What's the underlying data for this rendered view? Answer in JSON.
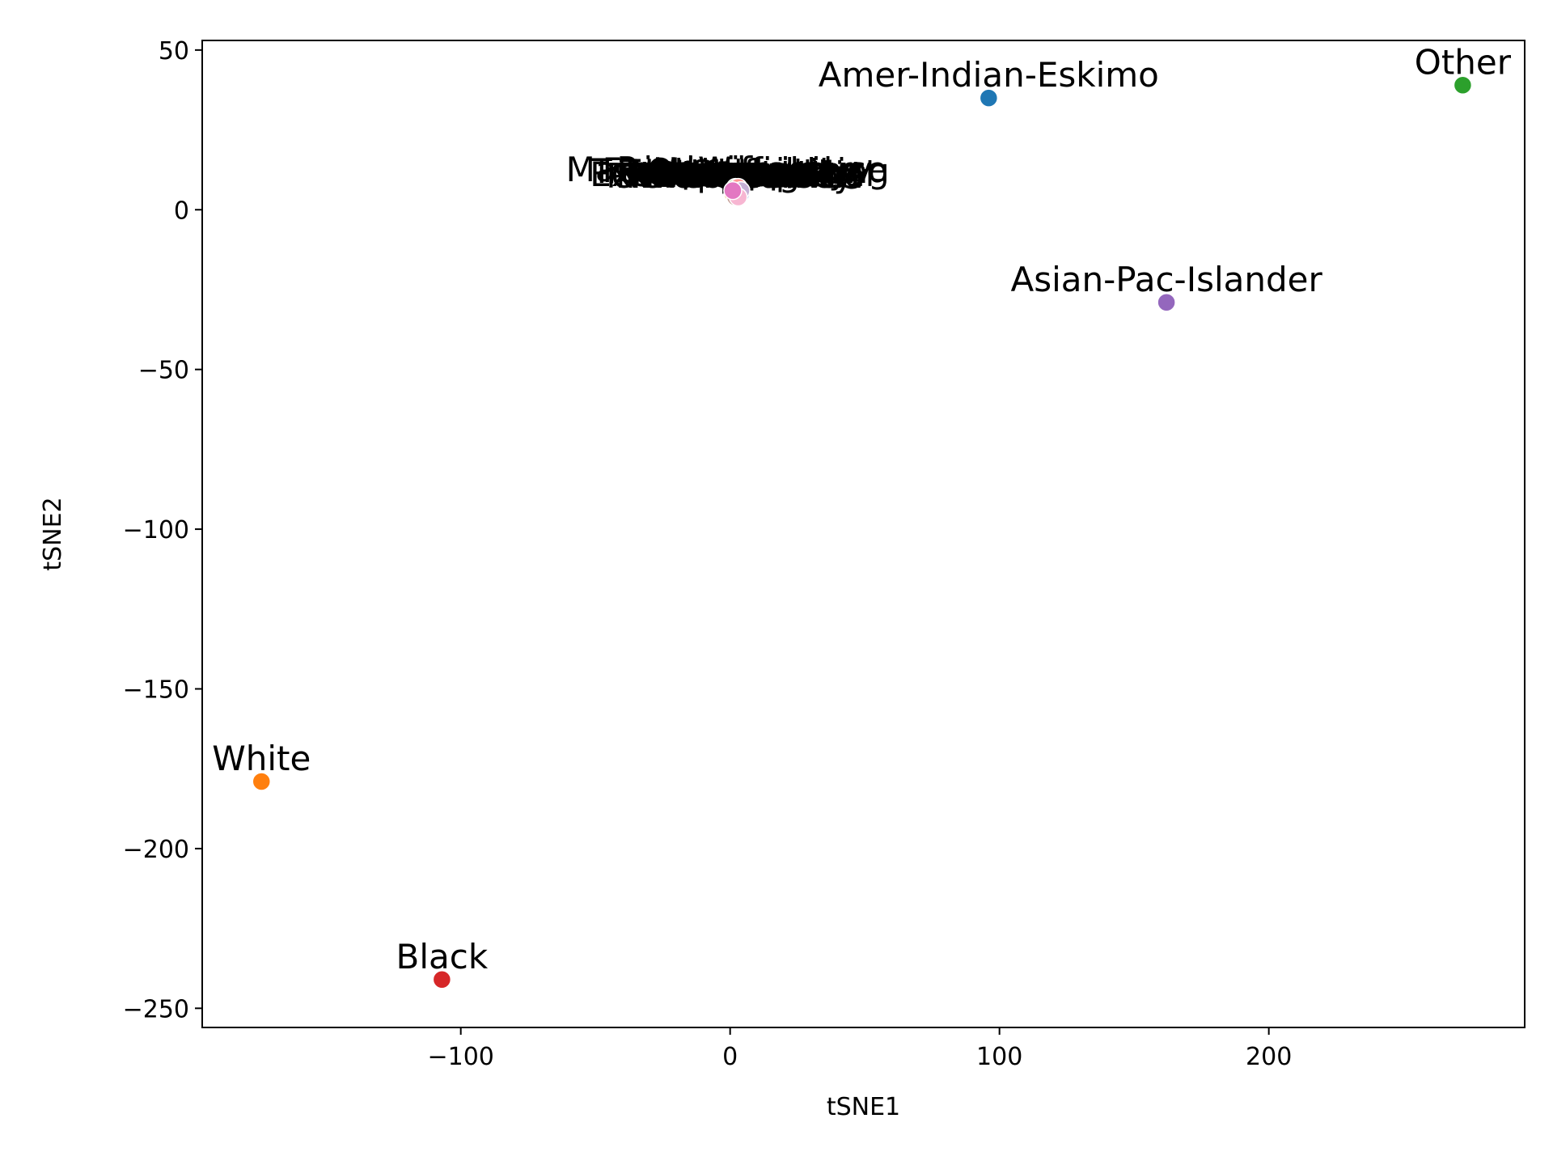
{
  "chart_data": {
    "type": "scatter",
    "title": "",
    "xlabel": "tSNE1",
    "ylabel": "tSNE2",
    "xlim": [
      -196,
      295
    ],
    "ylim": [
      -256,
      53
    ],
    "xticks": [
      -100,
      0,
      100,
      200
    ],
    "yticks": [
      50,
      0,
      -50,
      -100,
      -150,
      -200,
      -250
    ],
    "xtick_labels": [
      "−100",
      "0",
      "100",
      "200"
    ],
    "ytick_labels": [
      "50",
      "0",
      "−50",
      "−100",
      "−150",
      "−200",
      "−250"
    ],
    "grid": false,
    "legend": "none",
    "points": [
      {
        "label": "Amer-Indian-Eskimo",
        "x": 96,
        "y": 35,
        "color": "#1f77b4"
      },
      {
        "label": "Other",
        "x": 272,
        "y": 39,
        "color": "#2ca02c"
      },
      {
        "label": "Asian-Pac-Islander",
        "x": 162,
        "y": -29,
        "color": "#9467bd"
      },
      {
        "label": "White",
        "x": 174,
        "y": -179,
        "color": "#ff7f0e",
        "x_sign": -1
      },
      {
        "label": "Black",
        "x": -107,
        "y": -241,
        "color": "#d62728"
      },
      {
        "label": "",
        "x": 1,
        "y": 6,
        "color": "#e377c2"
      },
      {
        "label": "",
        "x": 2,
        "y": 6,
        "color": "#8c564b"
      },
      {
        "label": "",
        "x": 3,
        "y": 5,
        "color": "#7f7f7f"
      },
      {
        "label": "",
        "x": 2,
        "y": 5,
        "color": "#bcbd22"
      },
      {
        "label": "",
        "x": 3,
        "y": 6,
        "color": "#17becf"
      },
      {
        "label": "",
        "x": 4,
        "y": 5,
        "color": "#aec7e8"
      },
      {
        "label": "",
        "x": 1,
        "y": 5,
        "color": "#ffbb78"
      },
      {
        "label": "",
        "x": 2,
        "y": 7,
        "color": "#98df8a"
      },
      {
        "label": "",
        "x": 3,
        "y": 7,
        "color": "#ff9896"
      },
      {
        "label": "",
        "x": 4,
        "y": 6,
        "color": "#c5b0d5"
      },
      {
        "label": "",
        "x": 2,
        "y": 4,
        "color": "#c49c94"
      },
      {
        "label": "",
        "x": 3,
        "y": 4,
        "color": "#f7b6d2"
      },
      {
        "label": "",
        "x": 1,
        "y": 6,
        "color": "#e377c2"
      }
    ],
    "overlapping_labels": [
      "Married-civ-spouse",
      "Never-married",
      "Divorced",
      "Separated",
      "Widowed",
      "Husband",
      "Not-in-family",
      "Own-child",
      "Unmarried",
      "Wife",
      "Other-relative",
      "Prof-specialty",
      "Exec-managerial",
      "Craft-repair",
      "Sales",
      "Tech-support",
      "Transport-moving",
      "Farming-fishing",
      "Protective-serv",
      "Priv-house-serv",
      "Female",
      "Male"
    ],
    "overlapping_label_anchor": {
      "x": 2,
      "y": 11
    }
  }
}
